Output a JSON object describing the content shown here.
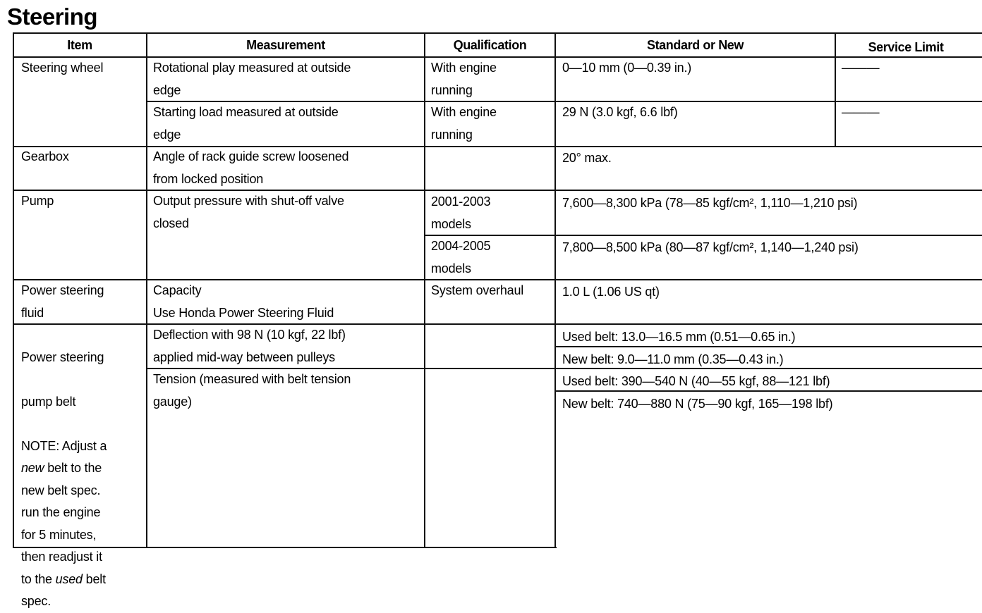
{
  "title": "Steering",
  "headers": [
    "Item",
    "Measurement",
    "Qualification",
    "Standard or New",
    "Service Limit"
  ],
  "rows": {
    "steering_wheel": {
      "item": "Steering wheel",
      "sub": [
        {
          "measurement": "Rotational play measured at outside\nedge",
          "qualification": "With engine\nrunning",
          "standard": "0—10 mm (0—0.39 in.)",
          "service_limit": "———"
        },
        {
          "measurement": "Starting load measured at outside\nedge",
          "qualification": "With engine\nrunning",
          "standard": "29 N (3.0 kgf, 6.6 lbf)",
          "service_limit": "———"
        }
      ]
    },
    "gearbox": {
      "item": "Gearbox",
      "measurement": "Angle of rack guide screw loosened\nfrom locked position",
      "qualification": "",
      "standard": "20° max."
    },
    "pump": {
      "item": "Pump",
      "measurement": "Output pressure with shut-off valve\nclosed",
      "sub": [
        {
          "qualification": "2001-2003\nmodels",
          "standard": "7,600—8,300 kPa (78—85 kgf/cm², 1,110—1,210 psi)"
        },
        {
          "qualification": "2004-2005\nmodels",
          "standard": "7,800—8,500 kPa (80—87 kgf/cm², 1,140—1,240 psi)"
        }
      ]
    },
    "fluid": {
      "item": "Power steering\nfluid",
      "measurement": "Capacity\nUse Honda Power Steering Fluid",
      "qualification": "System overhaul",
      "standard": "1.0 L (1.06 US qt)"
    },
    "belt": {
      "item_lines": [
        "Power steering",
        "pump belt",
        "NOTE: Adjust a"
      ],
      "note_italic_1": "new",
      "note_mid_1": " belt to the",
      "note_mid_2": "new belt spec.\nrun the engine\nfor 5 minutes,\nthen readjust it\nto the ",
      "note_italic_2": "used",
      "note_end": " belt\nspec.",
      "deflection": {
        "measurement": "Deflection with 98 N (10 kgf, 22 lbf)\napplied mid-way between pulleys",
        "used": "Used belt: 13.0—16.5 mm (0.51—0.65 in.)",
        "new": "New belt: 9.0—11.0 mm (0.35—0.43 in.)"
      },
      "tension": {
        "measurement": "Tension (measured with belt tension\ngauge)",
        "used": "Used belt: 390—540 N (40—55 kgf, 88—121 lbf)",
        "new": "New belt: 740—880 N (75—90 kgf, 165—198 lbf)"
      }
    }
  }
}
